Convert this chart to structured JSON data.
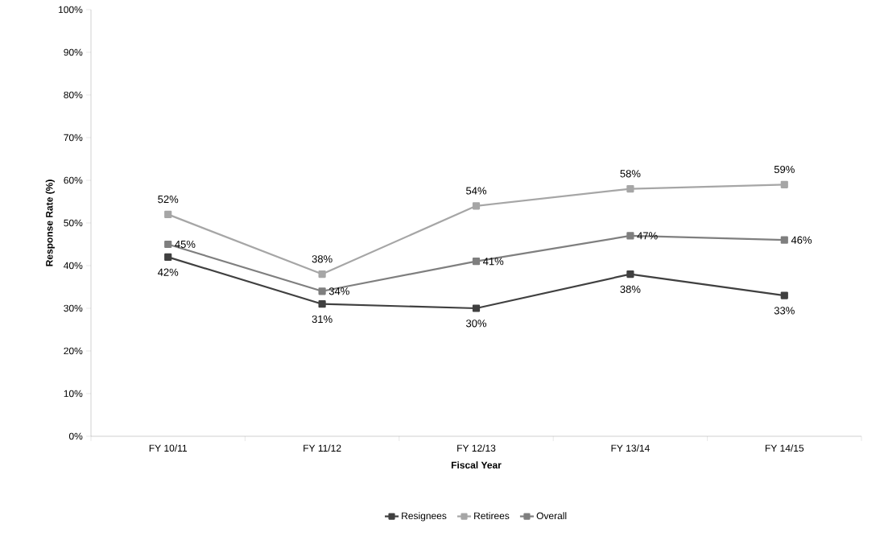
{
  "chart_data": {
    "type": "line",
    "xlabel": "Fiscal Year",
    "ylabel": "Response Rate (%)",
    "categories": [
      "FY 10/11",
      "FY 11/12",
      "FY 12/13",
      "FY 13/14",
      "FY 14/15"
    ],
    "ylim": [
      0,
      100
    ],
    "yticks": [
      {
        "value": 0,
        "label": "0%"
      },
      {
        "value": 10,
        "label": "10%"
      },
      {
        "value": 20,
        "label": "20%"
      },
      {
        "value": 30,
        "label": "30%"
      },
      {
        "value": 40,
        "label": "40%"
      },
      {
        "value": 50,
        "label": "50%"
      },
      {
        "value": 60,
        "label": "60%"
      },
      {
        "value": 70,
        "label": "70%"
      },
      {
        "value": 80,
        "label": "80%"
      },
      {
        "value": 90,
        "label": "90%"
      },
      {
        "value": 100,
        "label": "100%"
      }
    ],
    "series": [
      {
        "name": "Resignees",
        "color": "#404040",
        "values": [
          42,
          31,
          30,
          38,
          33
        ],
        "value_labels": [
          "42%",
          "31%",
          "30%",
          "38%",
          "33%"
        ]
      },
      {
        "name": "Retirees",
        "color": "#a6a6a6",
        "values": [
          52,
          38,
          54,
          58,
          59
        ],
        "value_labels": [
          "52%",
          "38%",
          "54%",
          "58%",
          "59%"
        ]
      },
      {
        "name": "Overall",
        "color": "#7f7f7f",
        "values": [
          45,
          34,
          41,
          47,
          46
        ],
        "value_labels": [
          "45%",
          "34%",
          "41%",
          "47%",
          "46%"
        ]
      }
    ],
    "marker": "square",
    "line_style": "solid",
    "grid": false,
    "legend": "bottom"
  }
}
